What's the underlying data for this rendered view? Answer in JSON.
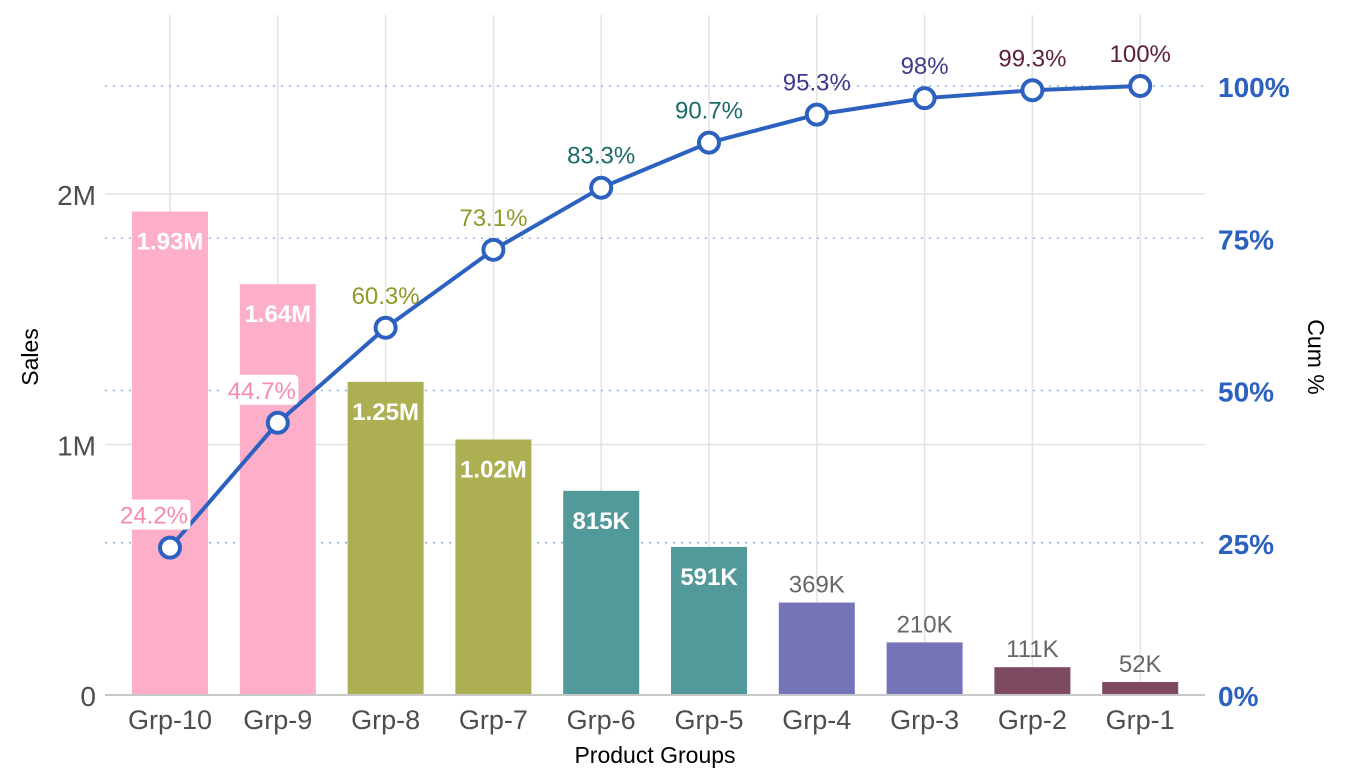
{
  "chart_data": {
    "type": "bar",
    "title": "",
    "xlabel": "Product Groups",
    "ylabel": "Sales",
    "y2label": "Cum %",
    "categories": [
      "Grp-10",
      "Grp-9",
      "Grp-8",
      "Grp-7",
      "Grp-6",
      "Grp-5",
      "Grp-4",
      "Grp-3",
      "Grp-2",
      "Grp-1"
    ],
    "values": [
      1930000,
      1640000,
      1250000,
      1020000,
      815000,
      591000,
      369000,
      210000,
      111000,
      52000
    ],
    "bar_labels": [
      "1.93M",
      "1.64M",
      "1.25M",
      "1.02M",
      "815K",
      "591K",
      "369K",
      "210K",
      "111K",
      "52K"
    ],
    "cum_pct": [
      24.2,
      44.7,
      60.3,
      73.1,
      83.3,
      90.7,
      95.3,
      98,
      99.3,
      100
    ],
    "cum_labels": [
      "24.2%",
      "44.7%",
      "60.3%",
      "73.1%",
      "83.3%",
      "90.7%",
      "95.3%",
      "98%",
      "99.3%",
      "100%"
    ],
    "ylim": [
      0,
      2400000
    ],
    "y_ticks": [
      0,
      1000000,
      2000000
    ],
    "y_tick_labels": [
      "0",
      "1M",
      "2M"
    ],
    "y2lim": [
      0,
      100
    ],
    "y2_ticks": [
      0,
      25,
      50,
      75,
      100
    ],
    "y2_tick_labels": [
      "0%",
      "25%",
      "50%",
      "75%",
      "100%"
    ],
    "bar_colors": [
      "#fdaec9",
      "#fdaec9",
      "#acb052",
      "#acb052",
      "#52999a",
      "#52999a",
      "#7674b8",
      "#7674b8",
      "#7e4a62",
      "#7e4a62"
    ],
    "cum_label_colors": [
      "#f589b2",
      "#f589b2",
      "#8e9926",
      "#8e9926",
      "#1a6b68",
      "#1a6b68",
      "#3c3a8c",
      "#3c3a8c",
      "#5c1f3c",
      "#5c1f3c"
    ],
    "line_color": "#2c61c0",
    "grid": true
  }
}
